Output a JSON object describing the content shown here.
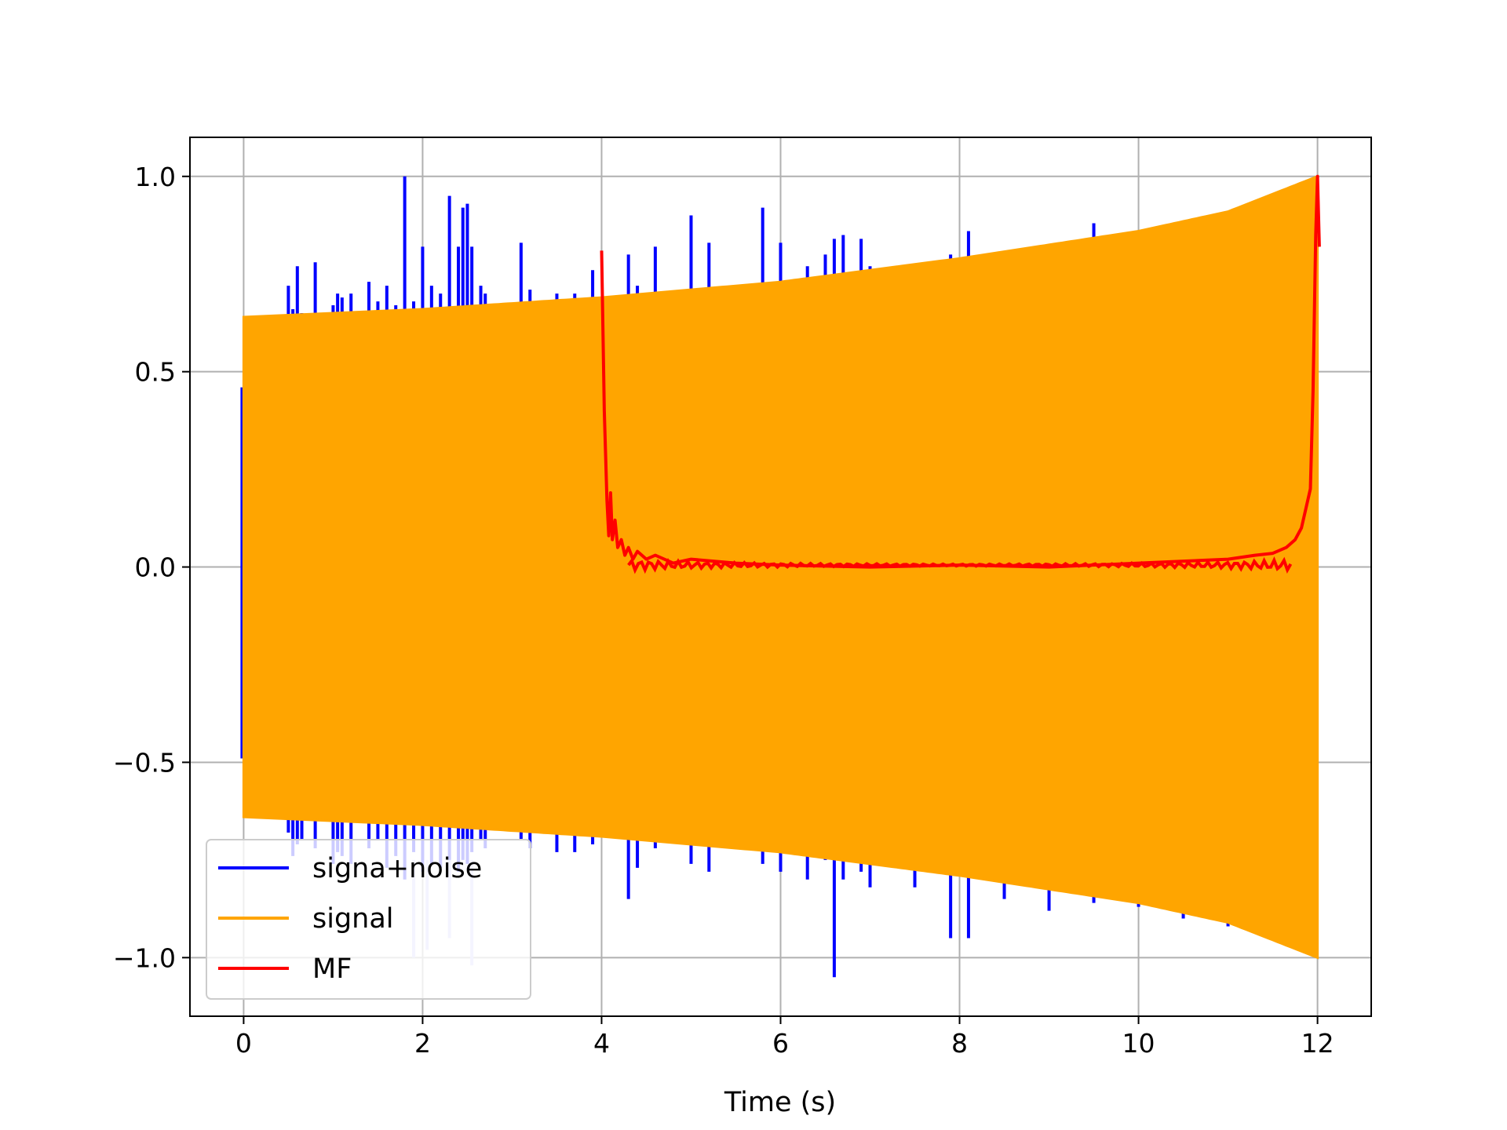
{
  "chart_data": {
    "type": "line",
    "title": "",
    "xlabel": "Time (s)",
    "ylabel": "",
    "xlim": [
      -0.6,
      12.6
    ],
    "ylim": [
      -1.15,
      1.1
    ],
    "grid": true,
    "legend_position": "lower-left",
    "xticks": [
      0,
      2,
      4,
      6,
      8,
      10,
      12
    ],
    "xtick_labels": [
      "0",
      "2",
      "4",
      "6",
      "8",
      "10",
      "12"
    ],
    "yticks": [
      -1.0,
      -0.5,
      0.0,
      0.5,
      1.0
    ],
    "ytick_labels": [
      "−1.0",
      "−0.5",
      "0.0",
      "0.5",
      "1.0"
    ],
    "series": [
      {
        "name": "signa+noise",
        "color": "#0000ff",
        "spikes": [
          [
            0.5,
            0.72,
            -0.68
          ],
          [
            0.55,
            0.66,
            -0.74
          ],
          [
            0.6,
            0.77,
            -0.71
          ],
          [
            0.65,
            0.65,
            -0.7
          ],
          [
            0.8,
            0.78,
            -0.72
          ],
          [
            1.0,
            0.67,
            -0.76
          ],
          [
            1.05,
            0.7,
            -0.73
          ],
          [
            1.1,
            0.69,
            -0.74
          ],
          [
            1.2,
            0.7,
            -0.76
          ],
          [
            1.4,
            0.73,
            -0.72
          ],
          [
            1.5,
            0.68,
            -0.7
          ],
          [
            1.6,
            0.72,
            -0.77
          ],
          [
            1.7,
            0.67,
            -0.74
          ],
          [
            1.8,
            1.0,
            -0.8
          ],
          [
            1.9,
            0.68,
            -0.73
          ],
          [
            2.0,
            0.82,
            -0.78
          ],
          [
            2.1,
            0.72,
            -0.76
          ],
          [
            2.2,
            0.7,
            -0.77
          ],
          [
            2.3,
            0.95,
            -0.8
          ],
          [
            2.4,
            0.82,
            -0.78
          ],
          [
            2.45,
            0.92,
            -0.75
          ],
          [
            2.5,
            0.93,
            -0.76
          ],
          [
            2.55,
            0.82,
            -0.73
          ],
          [
            2.65,
            0.72,
            -0.7
          ],
          [
            2.7,
            0.7,
            -0.72
          ],
          [
            3.1,
            0.83,
            -0.7
          ],
          [
            3.2,
            0.71,
            -0.72
          ],
          [
            3.5,
            0.7,
            -0.73
          ],
          [
            3.7,
            0.7,
            -0.73
          ],
          [
            3.9,
            0.76,
            -0.71
          ],
          [
            4.3,
            0.8,
            -0.85
          ],
          [
            4.4,
            0.72,
            -0.77
          ],
          [
            4.6,
            0.82,
            -0.72
          ],
          [
            5.0,
            0.9,
            -0.76
          ],
          [
            5.2,
            0.83,
            -0.78
          ],
          [
            5.8,
            0.92,
            -0.76
          ],
          [
            6.0,
            0.83,
            -0.78
          ],
          [
            6.3,
            0.77,
            -0.8
          ],
          [
            6.5,
            0.8,
            -0.75
          ],
          [
            6.6,
            0.84,
            -1.05
          ],
          [
            6.7,
            0.85,
            -0.8
          ],
          [
            6.9,
            0.84,
            -0.78
          ],
          [
            7.0,
            0.77,
            -0.82
          ],
          [
            7.5,
            0.76,
            -0.82
          ],
          [
            7.9,
            0.8,
            -0.95
          ],
          [
            8.1,
            0.86,
            -0.95
          ],
          [
            8.5,
            0.8,
            -0.85
          ],
          [
            9.0,
            0.78,
            -0.88
          ],
          [
            9.5,
            0.88,
            -0.86
          ],
          [
            10.0,
            0.85,
            -0.87
          ],
          [
            10.5,
            0.86,
            -0.9
          ],
          [
            11.0,
            0.87,
            -0.92
          ]
        ]
      },
      {
        "name": "signal",
        "color": "#ffa500",
        "t_start": 0,
        "t_end": 12,
        "envelope": [
          [
            0,
            0.64
          ],
          [
            2,
            0.66
          ],
          [
            4,
            0.69
          ],
          [
            6,
            0.73
          ],
          [
            8,
            0.79
          ],
          [
            10,
            0.86
          ],
          [
            11,
            0.91
          ],
          [
            12,
            1.0
          ]
        ]
      },
      {
        "name": "MF",
        "color": "#ff0000",
        "points": [
          [
            4.0,
            0.81
          ],
          [
            4.03,
            0.4
          ],
          [
            4.06,
            0.17
          ],
          [
            4.08,
            0.08
          ],
          [
            4.1,
            0.19
          ],
          [
            4.12,
            0.07
          ],
          [
            4.15,
            0.12
          ],
          [
            4.18,
            0.05
          ],
          [
            4.22,
            0.07
          ],
          [
            4.26,
            0.03
          ],
          [
            4.3,
            0.05
          ],
          [
            4.35,
            0.02
          ],
          [
            4.4,
            0.04
          ],
          [
            4.5,
            0.02
          ],
          [
            4.6,
            0.03
          ],
          [
            4.8,
            0.01
          ],
          [
            5.0,
            0.02
          ],
          [
            5.5,
            0.01
          ],
          [
            6.0,
            0.005
          ],
          [
            7.0,
            0.0
          ],
          [
            8.0,
            0.005
          ],
          [
            9.0,
            0.0
          ],
          [
            10.0,
            0.01
          ],
          [
            10.5,
            0.015
          ],
          [
            11.0,
            0.02
          ],
          [
            11.3,
            0.03
          ],
          [
            11.5,
            0.035
          ],
          [
            11.65,
            0.05
          ],
          [
            11.75,
            0.07
          ],
          [
            11.82,
            0.1
          ],
          [
            11.87,
            0.15
          ],
          [
            11.92,
            0.2
          ],
          [
            11.95,
            0.45
          ],
          [
            11.98,
            0.85
          ],
          [
            12.0,
            1.0
          ],
          [
            12.02,
            0.82
          ]
        ]
      }
    ]
  }
}
